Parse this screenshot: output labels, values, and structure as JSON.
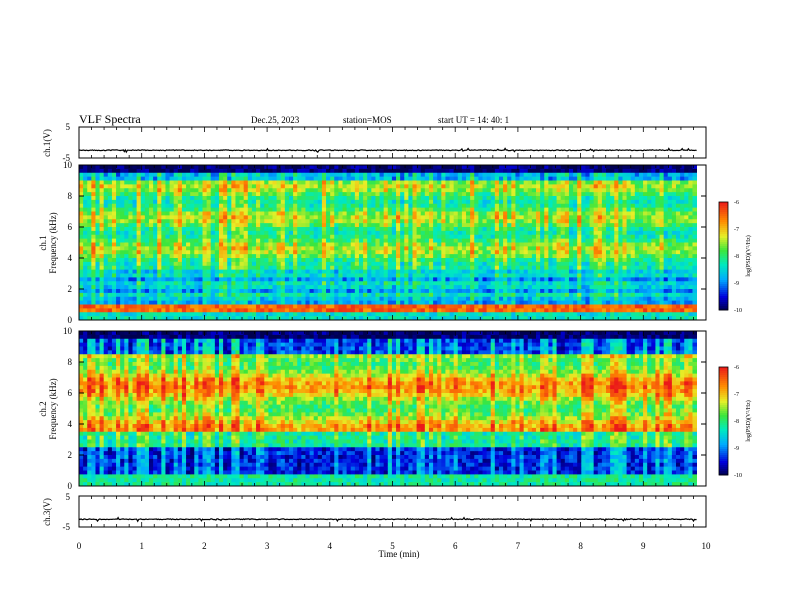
{
  "header": {
    "title": "VLF Spectra",
    "date": "Dec.25, 2023",
    "station": "station=MOS",
    "start": "start  UT  =   14: 40: 1"
  },
  "chart_data": {
    "type": "heatmap",
    "x_axis": {
      "label": "Time  (min)",
      "range": [
        0,
        10
      ],
      "ticks": [
        "0",
        "1",
        "2",
        "3",
        "4",
        "5",
        "6",
        "7",
        "8",
        "9",
        "10"
      ]
    },
    "panels": [
      {
        "id": "ch1-waveform",
        "type": "line",
        "ylabel": "ch.1(V)",
        "ylim": [
          -5,
          5
        ],
        "yticks": [
          "5",
          "-5"
        ],
        "baseline": -2.5
      },
      {
        "id": "ch1-spectrogram",
        "type": "heatmap",
        "ylabel_line1": "ch.1",
        "ylabel_line2": "Frequency  (kHz)",
        "ylim": [
          0,
          10
        ],
        "yticks": [
          "0",
          "2",
          "4",
          "6",
          "8",
          "10"
        ],
        "colorbar": {
          "label": "log(PSD)(V²/Hz)",
          "range": [
            -10,
            -6
          ],
          "ticks": [
            "-6",
            "-7",
            "-8",
            "-9",
            "-10"
          ]
        }
      },
      {
        "id": "ch2-spectrogram",
        "type": "heatmap",
        "ylabel_line1": "ch.2",
        "ylabel_line2": "Frequency  (kHz)",
        "ylim": [
          0,
          10
        ],
        "yticks": [
          "0",
          "2",
          "4",
          "6",
          "8",
          "10"
        ],
        "colorbar": {
          "label": "log(PSD)(V²/Hz)",
          "range": [
            -10,
            -6
          ],
          "ticks": [
            "-6",
            "-7",
            "-8",
            "-9",
            "-10"
          ]
        }
      },
      {
        "id": "ch3-waveform",
        "type": "line",
        "ylabel": "ch.3(V)",
        "ylim": [
          -5,
          5
        ],
        "yticks": [
          "5",
          "-5"
        ],
        "baseline": -2.5
      }
    ],
    "data_end_min": 9.85
  }
}
